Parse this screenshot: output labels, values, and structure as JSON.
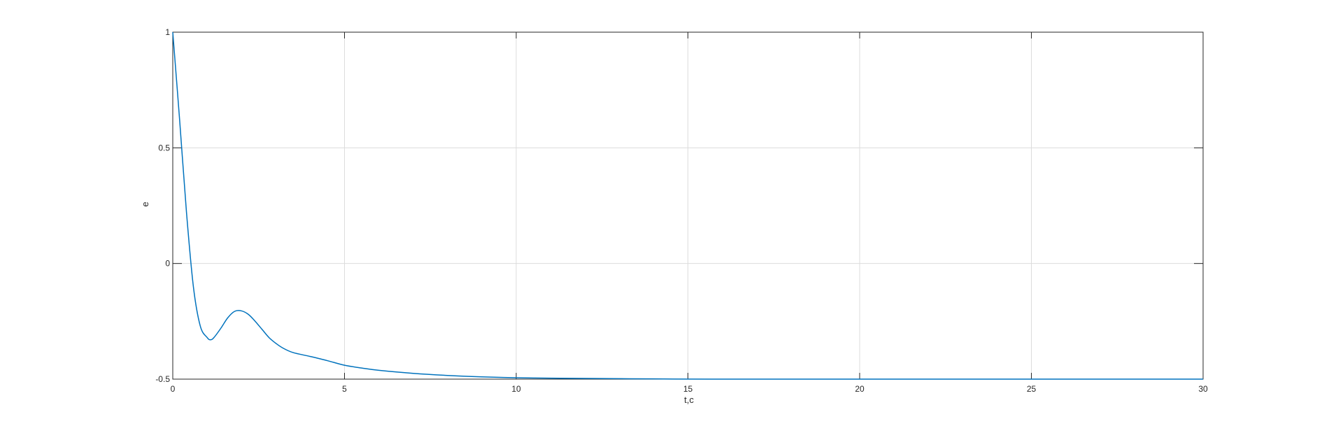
{
  "chart_data": {
    "type": "line",
    "title": "",
    "xlabel": "t,c",
    "ylabel": "e",
    "xlim": [
      0,
      30
    ],
    "ylim": [
      -0.5,
      1
    ],
    "xticks": [
      0,
      5,
      10,
      15,
      20,
      25,
      30
    ],
    "xtick_labels": [
      "0",
      "5",
      "10",
      "15",
      "20",
      "25",
      "30"
    ],
    "yticks": [
      -0.5,
      0,
      0.5,
      1
    ],
    "ytick_labels": [
      "-0.5",
      "0",
      "0.5",
      "1"
    ],
    "grid": true,
    "legend": "none",
    "colors": {
      "line": "#0072BD",
      "axes": "#262626",
      "grid": "#dcdcdc",
      "background": "#ffffff"
    },
    "series": [
      {
        "x": [
          0,
          0.2,
          0.4,
          0.6,
          0.8,
          1.0,
          1.1,
          1.2,
          1.4,
          1.6,
          1.8,
          2.0,
          2.2,
          2.4,
          2.6,
          2.8,
          3.0,
          3.2,
          3.5,
          4.0,
          4.5,
          5.0,
          5.5,
          6.0,
          7.0,
          8.0,
          9.0,
          10.0,
          11.0,
          12.0,
          14.0,
          16.0,
          20.0,
          25.0,
          30.0
        ],
        "y": [
          1.0,
          0.62,
          0.22,
          -0.1,
          -0.27,
          -0.32,
          -0.33,
          -0.32,
          -0.28,
          -0.235,
          -0.207,
          -0.205,
          -0.22,
          -0.25,
          -0.285,
          -0.32,
          -0.345,
          -0.365,
          -0.385,
          -0.402,
          -0.42,
          -0.44,
          -0.452,
          -0.462,
          -0.475,
          -0.484,
          -0.49,
          -0.494,
          -0.496,
          -0.497,
          -0.499,
          -0.5,
          -0.5,
          -0.5,
          -0.5
        ]
      }
    ]
  }
}
